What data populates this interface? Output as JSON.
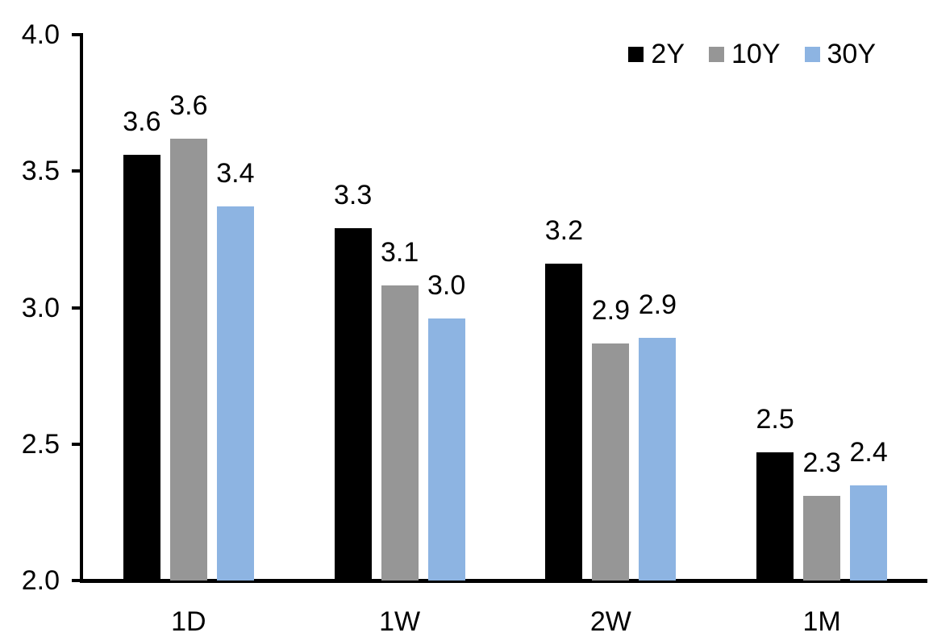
{
  "chart_data": {
    "type": "bar",
    "title": "",
    "xlabel": "",
    "ylabel": "",
    "categories": [
      "1D",
      "1W",
      "2W",
      "1M"
    ],
    "series": [
      {
        "name": "2Y",
        "color": "#000000",
        "values": [
          3.56,
          3.29,
          3.16,
          2.47
        ],
        "labels": [
          "3.6",
          "3.3",
          "3.2",
          "2.5"
        ]
      },
      {
        "name": "10Y",
        "color": "#969696",
        "values": [
          3.62,
          3.08,
          2.87,
          2.31
        ],
        "labels": [
          "3.6",
          "3.1",
          "2.9",
          "2.3"
        ]
      },
      {
        "name": "30Y",
        "color": "#8DB4E2",
        "values": [
          3.37,
          2.96,
          2.89,
          2.35
        ],
        "labels": [
          "3.4",
          "3.0",
          "2.9",
          "2.4"
        ]
      }
    ],
    "ylim": [
      2.0,
      4.0
    ],
    "yticks": [
      "4.0",
      "3.5",
      "3.0",
      "2.5",
      "2.0"
    ],
    "grid": false,
    "legend_position": "top-right",
    "axis_color": "#000000",
    "background": "#FFFFFF",
    "bar_label_color": "#000000"
  }
}
